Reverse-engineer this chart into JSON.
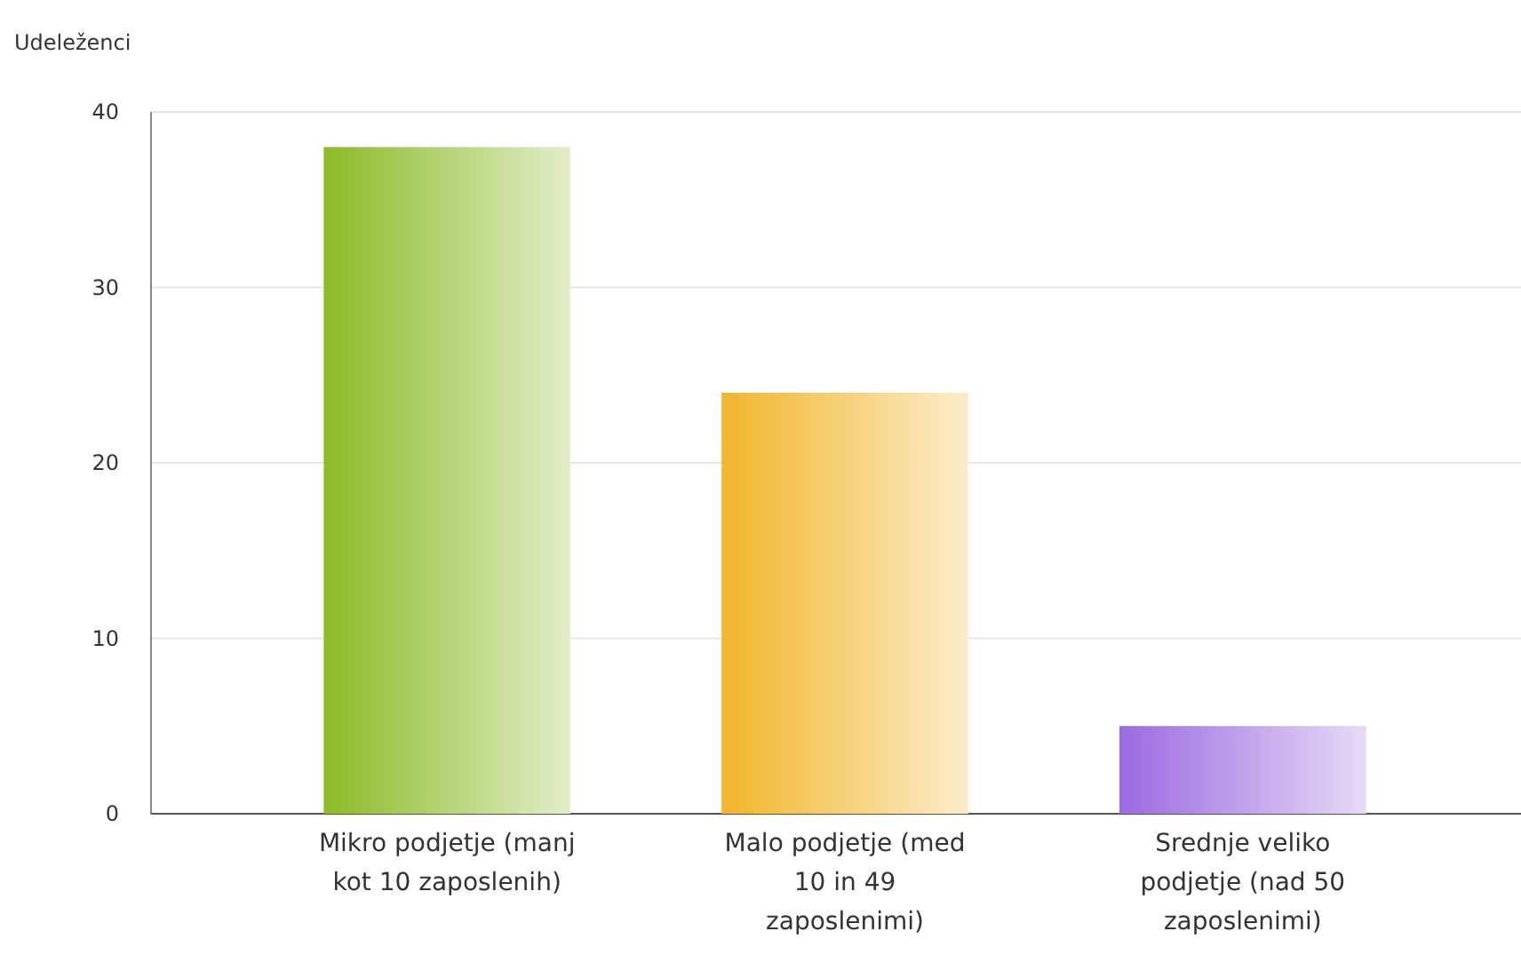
{
  "chart_data": {
    "type": "bar",
    "ylabel": "Udeleženci",
    "categories": [
      "Mikro podjetje (manj kot 10 zaposlenih)",
      "Malo podjetje (med 10 in 49 zaposlenimi)",
      "Srednje veliko podjetje (nad 50 zaposlenimi)"
    ],
    "values": [
      38,
      24,
      5
    ],
    "colors": [
      "#8cbb26",
      "#f1b52a",
      "#9b6ae0"
    ],
    "ylim": [
      0,
      40
    ],
    "yticks": [
      0,
      10,
      20,
      30,
      40
    ],
    "grid": "y"
  }
}
